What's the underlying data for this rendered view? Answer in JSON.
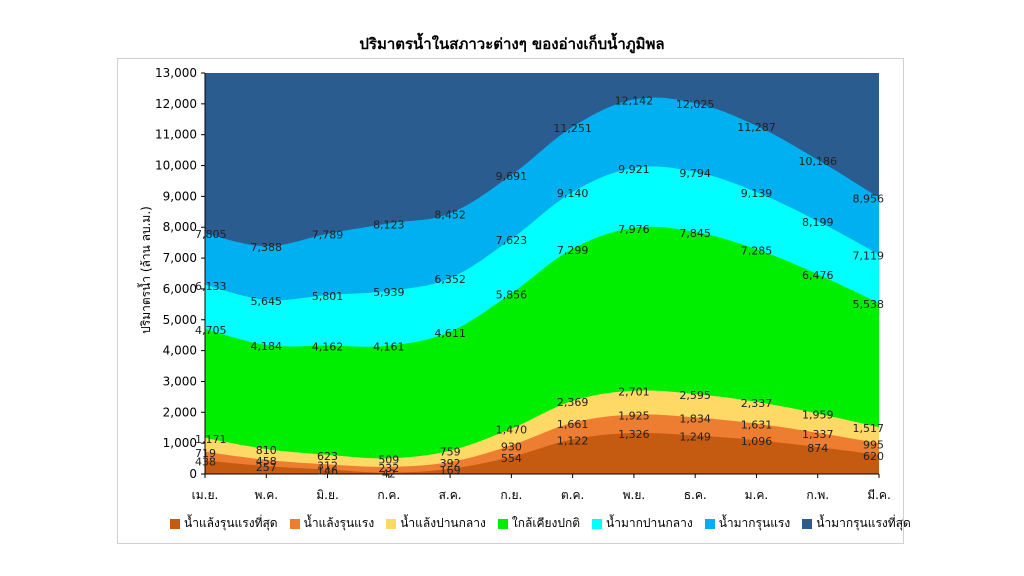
{
  "chart_data": {
    "type": "area",
    "title": "ปริมาตรน้ำในสภาวะต่างๆ ของอ่างเก็บน้ำภูมิพล",
    "ylabel": "ปริมาตรน้ำ (ล้าน ลบ.ม.)",
    "xlabel": "",
    "ylim": [
      0,
      13000
    ],
    "yticks": [
      "0",
      "1,000",
      "2,000",
      "3,000",
      "4,000",
      "5,000",
      "6,000",
      "7,000",
      "8,000",
      "9,000",
      "10,000",
      "11,000",
      "12,000",
      "13,000"
    ],
    "categories": [
      "เม.ย.",
      "พ.ค.",
      "มิ.ย.",
      "ก.ค.",
      "ส.ค.",
      "ก.ย.",
      "ต.ค.",
      "พ.ย.",
      "ธ.ค.",
      "ม.ค.",
      "ก.พ.",
      "มี.ค."
    ],
    "top_value": 13000,
    "series": [
      {
        "name": "น้ำแล้งรุนแรงที่สุด",
        "color": "#c55a11",
        "values": [
          438,
          257,
          146,
          42,
          169,
          554,
          1122,
          1326,
          1249,
          1096,
          874,
          620
        ],
        "labels": [
          "438",
          "257",
          "146",
          "42",
          "169",
          "554",
          "1,122",
          "1,326",
          "1,249",
          "1,096",
          "874",
          "620"
        ]
      },
      {
        "name": "น้ำแล้งรุนแรง",
        "color": "#ed7d31",
        "values": [
          719,
          458,
          312,
          232,
          392,
          930,
          1661,
          1925,
          1834,
          1631,
          1337,
          995
        ],
        "labels": [
          "719",
          "458",
          "312",
          "232",
          "392",
          "930",
          "1,661",
          "1,925",
          "1,834",
          "1,631",
          "1,337",
          "995"
        ]
      },
      {
        "name": "น้ำแล้งปานกลาง",
        "color": "#ffd966",
        "values": [
          1171,
          810,
          623,
          509,
          759,
          1470,
          2369,
          2701,
          2595,
          2337,
          1959,
          1517
        ],
        "labels": [
          "1,171",
          "810",
          "623",
          "509",
          "759",
          "1,470",
          "2,369",
          "2,701",
          "2,595",
          "2,337",
          "1,959",
          "1,517"
        ]
      },
      {
        "name": "ใกล้เคียงปกติ",
        "color": "#00ee00",
        "values": [
          4705,
          4184,
          4162,
          4161,
          4611,
          5856,
          7299,
          7976,
          7845,
          7285,
          6476,
          5538
        ],
        "labels": [
          "4,705",
          "4,184",
          "4,162",
          "4,161",
          "4,611",
          "5,856",
          "7,299",
          "7,976",
          "7,845",
          "7,285",
          "6,476",
          "5,538"
        ]
      },
      {
        "name": "น้ำมากปานกลาง",
        "color": "#00ffff",
        "values": [
          6133,
          5645,
          5801,
          5939,
          6352,
          7623,
          9140,
          9921,
          9794,
          9139,
          8199,
          7119
        ],
        "labels": [
          "6,133",
          "5,645",
          "5,801",
          "5,939",
          "6,352",
          "7,623",
          "9,140",
          "9,921",
          "9,794",
          "9,139",
          "8,199",
          "7,119"
        ]
      },
      {
        "name": "น้ำมากรุนแรง",
        "color": "#00b0f0",
        "values": [
          7805,
          7388,
          7789,
          8123,
          8452,
          9691,
          11251,
          12142,
          12025,
          11287,
          10186,
          8956
        ],
        "labels": [
          "7,805",
          "7,388",
          "7,789",
          "8,123",
          "8,452",
          "9,691",
          "11,251",
          "12,142",
          "12,025",
          "11,287",
          "10,186",
          "8,956"
        ]
      },
      {
        "name": "น้ำมากรุนแรงที่สุด",
        "color": "#2b5c8f",
        "values": [
          13000,
          13000,
          13000,
          13000,
          13000,
          13000,
          13000,
          13000,
          13000,
          13000,
          13000,
          13000
        ],
        "labels": []
      }
    ]
  }
}
